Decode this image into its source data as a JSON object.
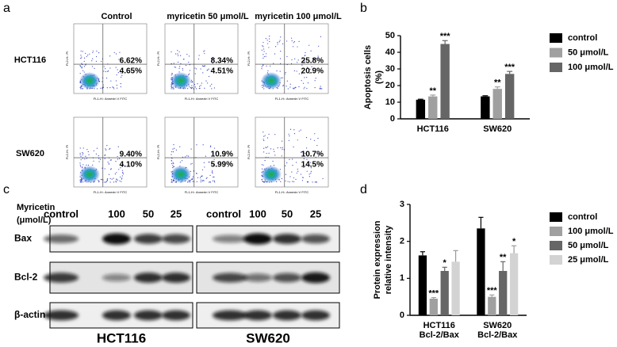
{
  "panel_a": {
    "label": "a",
    "columns": [
      "Control",
      "myricetin 50 μmol/L",
      "myricetin 100 μmol/L"
    ],
    "rows": [
      "HCT116",
      "SW620"
    ],
    "x_axis_label": "FL1-H:: Annexin V FITC",
    "y_axis_label": "FL2-H:: PI",
    "percentages": [
      [
        [
          "6.62%",
          "4.65%"
        ],
        [
          "8.34%",
          "4.51%"
        ],
        [
          "25.8%",
          "20.9%"
        ]
      ],
      [
        [
          "9.40%",
          "4.10%"
        ],
        [
          "10.9%",
          "5.99%"
        ],
        [
          "10.7%",
          "14.5%"
        ]
      ]
    ]
  },
  "panel_c": {
    "label": "c",
    "treatment_label": [
      "Myricetin",
      "(μmol/L)"
    ],
    "lanes": [
      "control",
      "100",
      "50",
      "25"
    ],
    "proteins": [
      "Bax",
      "Bcl-2",
      "β-actin"
    ],
    "cell_lines": [
      "HCT116",
      "SW620"
    ]
  },
  "chart_data": [
    {
      "type": "bar",
      "panel_label": "b",
      "y_label": [
        "Apoptosis cells",
        "(%)"
      ],
      "categories": [
        [
          "HCT116"
        ],
        [
          "SW620"
        ]
      ],
      "ylim": [
        0,
        50
      ],
      "yticks": [
        0,
        10,
        20,
        30,
        40,
        50
      ],
      "series": [
        {
          "name": "control",
          "color": "#000000",
          "values": [
            11.5,
            13.5
          ],
          "errors": [
            0.3,
            0.4
          ],
          "annotations": [
            null,
            null
          ]
        },
        {
          "name": "50 μmol/L",
          "color": "#a0a0a0",
          "values": [
            13.5,
            18
          ],
          "errors": [
            0.8,
            1.2
          ],
          "annotations": [
            "**",
            "**"
          ]
        },
        {
          "name": "100 μmol/L",
          "color": "#666666",
          "values": [
            45,
            27
          ],
          "errors": [
            2,
            1.5
          ],
          "annotations": [
            "***",
            "***"
          ]
        }
      ]
    },
    {
      "type": "bar",
      "panel_label": "d",
      "y_label": [
        "Protein expression",
        "relative intensity"
      ],
      "categories": [
        [
          "HCT116",
          "Bcl-2/Bax"
        ],
        [
          "SW620",
          "Bcl-2/Bax"
        ]
      ],
      "ylim": [
        0,
        3
      ],
      "yticks": [
        0,
        1,
        2,
        3
      ],
      "series": [
        {
          "name": "control",
          "color": "#000000",
          "values": [
            1.62,
            2.35
          ],
          "errors": [
            0.1,
            0.3
          ],
          "annotations": [
            null,
            null
          ]
        },
        {
          "name": "100 μmol/L",
          "color": "#a0a0a0",
          "values": [
            0.45,
            0.5
          ],
          "errors": [
            0.03,
            0.05
          ],
          "annotations": [
            "***",
            "***"
          ]
        },
        {
          "name": "50 μmol/L",
          "color": "#666666",
          "values": [
            1.2,
            1.2
          ],
          "errors": [
            0.1,
            0.25
          ],
          "annotations": [
            "*",
            "**"
          ]
        },
        {
          "name": "25 μmol/L",
          "color": "#d3d3d3",
          "values": [
            1.45,
            1.68
          ],
          "errors": [
            0.3,
            0.2
          ],
          "annotations": [
            null,
            "*"
          ]
        }
      ]
    }
  ]
}
